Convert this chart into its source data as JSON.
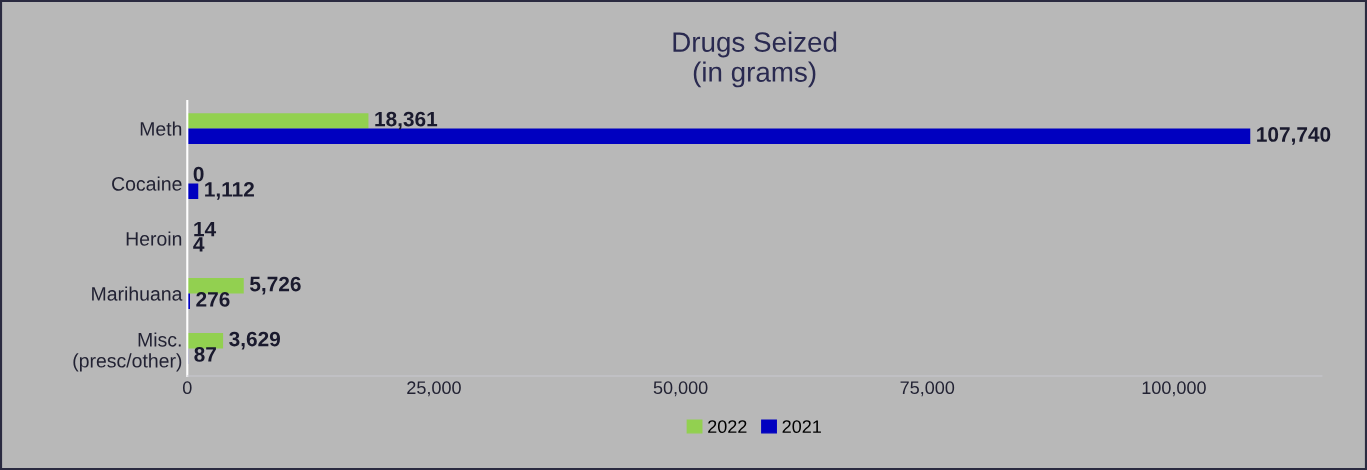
{
  "chart_data": {
    "type": "bar",
    "orientation": "horizontal",
    "title": "Drugs Seized\n(in grams)",
    "categories": [
      "Meth",
      "Cocaine",
      "Heroin",
      "Marihuana",
      "Misc.\n(presc/other)"
    ],
    "series": [
      {
        "name": "2022",
        "color": "#92d050",
        "values": [
          18361,
          0,
          14,
          5726,
          3629
        ],
        "value_labels": [
          "18,361",
          "0",
          "14",
          "5,726",
          "3,629"
        ]
      },
      {
        "name": "2021",
        "color": "#0000c0",
        "values": [
          107740,
          1112,
          4,
          276,
          87
        ],
        "value_labels": [
          "107,740",
          "1,112",
          "4",
          "276",
          "87"
        ]
      }
    ],
    "xlim": [
      0,
      115000
    ],
    "xticks": [
      0,
      {
        "value": 25000,
        "label": "25,000"
      },
      {
        "value": 50000,
        "label": "50,000"
      },
      {
        "value": 75000,
        "label": "75,000"
      },
      {
        "value": 100000,
        "label": "100,000"
      }
    ],
    "grid": false,
    "legend": "bottom"
  }
}
